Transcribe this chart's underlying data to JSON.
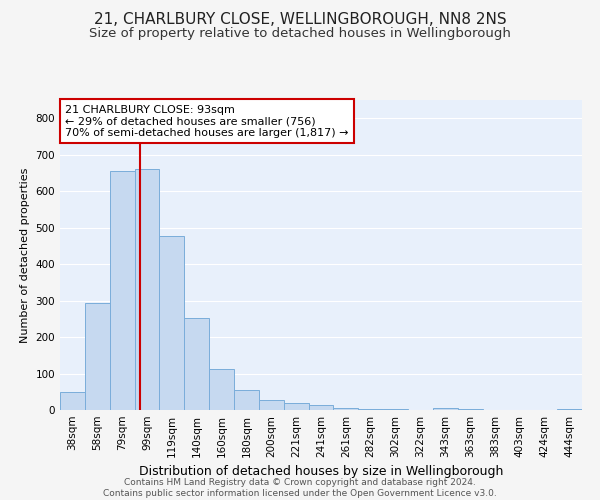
{
  "title1": "21, CHARLBURY CLOSE, WELLINGBOROUGH, NN8 2NS",
  "title2": "Size of property relative to detached houses in Wellingborough",
  "xlabel": "Distribution of detached houses by size in Wellingborough",
  "ylabel": "Number of detached properties",
  "bar_labels": [
    "38sqm",
    "58sqm",
    "79sqm",
    "99sqm",
    "119sqm",
    "140sqm",
    "160sqm",
    "180sqm",
    "200sqm",
    "221sqm",
    "241sqm",
    "261sqm",
    "282sqm",
    "302sqm",
    "322sqm",
    "343sqm",
    "363sqm",
    "383sqm",
    "403sqm",
    "424sqm",
    "444sqm"
  ],
  "bar_values": [
    48,
    293,
    655,
    660,
    478,
    252,
    113,
    55,
    28,
    18,
    14,
    5,
    3,
    2,
    1,
    5,
    2,
    1,
    1,
    0,
    2
  ],
  "bar_color": "#c6d9f0",
  "bar_edge_color": "#7aadda",
  "bg_color": "#e8f0fb",
  "grid_color": "#ffffff",
  "vline_color": "#cc0000",
  "annotation_text": "21 CHARLBURY CLOSE: 93sqm\n← 29% of detached houses are smaller (756)\n70% of semi-detached houses are larger (1,817) →",
  "annotation_box_color": "#ffffff",
  "annotation_box_edge": "#cc0000",
  "ylim": [
    0,
    850
  ],
  "yticks": [
    0,
    100,
    200,
    300,
    400,
    500,
    600,
    700,
    800
  ],
  "footnote": "Contains HM Land Registry data © Crown copyright and database right 2024.\nContains public sector information licensed under the Open Government Licence v3.0.",
  "title1_fontsize": 11,
  "title2_fontsize": 9.5,
  "xlabel_fontsize": 9,
  "ylabel_fontsize": 8,
  "tick_fontsize": 7.5,
  "annotation_fontsize": 8,
  "footnote_fontsize": 6.5
}
